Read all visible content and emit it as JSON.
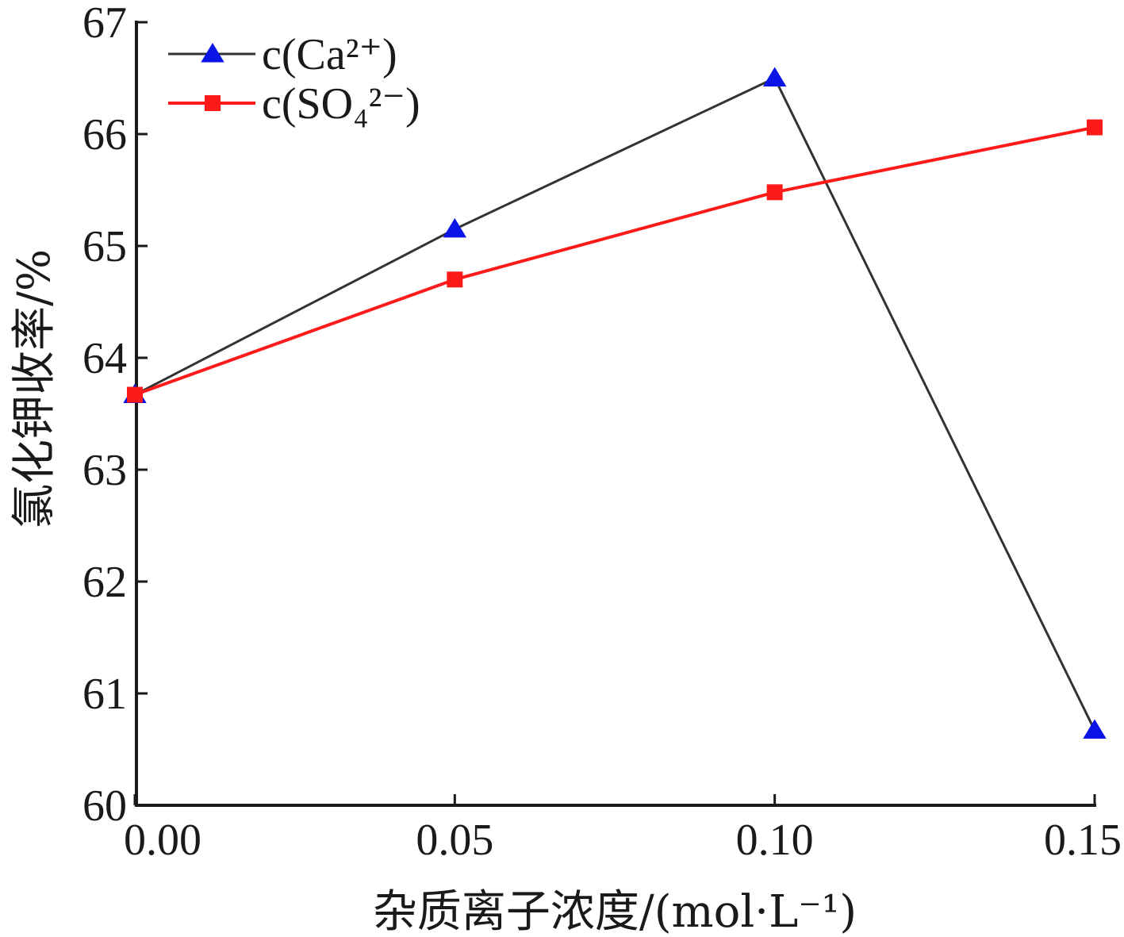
{
  "chart_data": {
    "type": "line",
    "xlabel": "杂质离子浓度/(mol·L⁻¹)",
    "ylabel": "氯化钾收率/%",
    "xlim": [
      0.0,
      0.15
    ],
    "ylim": [
      60,
      67
    ],
    "x_ticks": [
      "0.00",
      "0.05",
      "0.10",
      "0.15"
    ],
    "y_ticks": [
      "60",
      "61",
      "62",
      "63",
      "64",
      "65",
      "66",
      "67"
    ],
    "grid": false,
    "legend_position": "top-left",
    "x": [
      0.0,
      0.05,
      0.1,
      0.15
    ],
    "series": [
      {
        "name": "c(Ca²⁺)",
        "values": [
          63.67,
          65.15,
          66.5,
          60.67
        ],
        "color": "#333333",
        "marker_color": "#0a14e6",
        "marker": "triangle"
      },
      {
        "name": "c(SO₄²⁻)",
        "values": [
          63.67,
          64.7,
          65.48,
          66.06
        ],
        "color": "#ff1a1a",
        "marker_color": "#ff1a1a",
        "marker": "square"
      }
    ]
  }
}
